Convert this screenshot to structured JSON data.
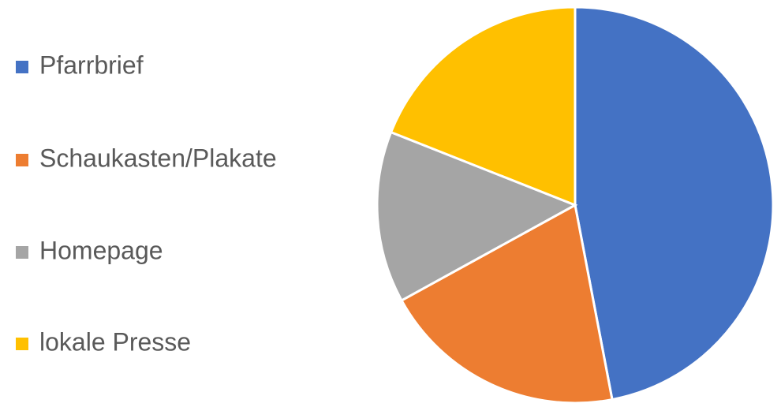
{
  "chart_data": {
    "type": "pie",
    "categories": [
      "Pfarrbrief",
      "Schaukasten/Plakate",
      "Homepage",
      "lokale Presse"
    ],
    "values": [
      47,
      20,
      14,
      19
    ],
    "colors": [
      "#4472c4",
      "#ed7d31",
      "#a5a5a5",
      "#ffc000"
    ],
    "legend": "left"
  }
}
